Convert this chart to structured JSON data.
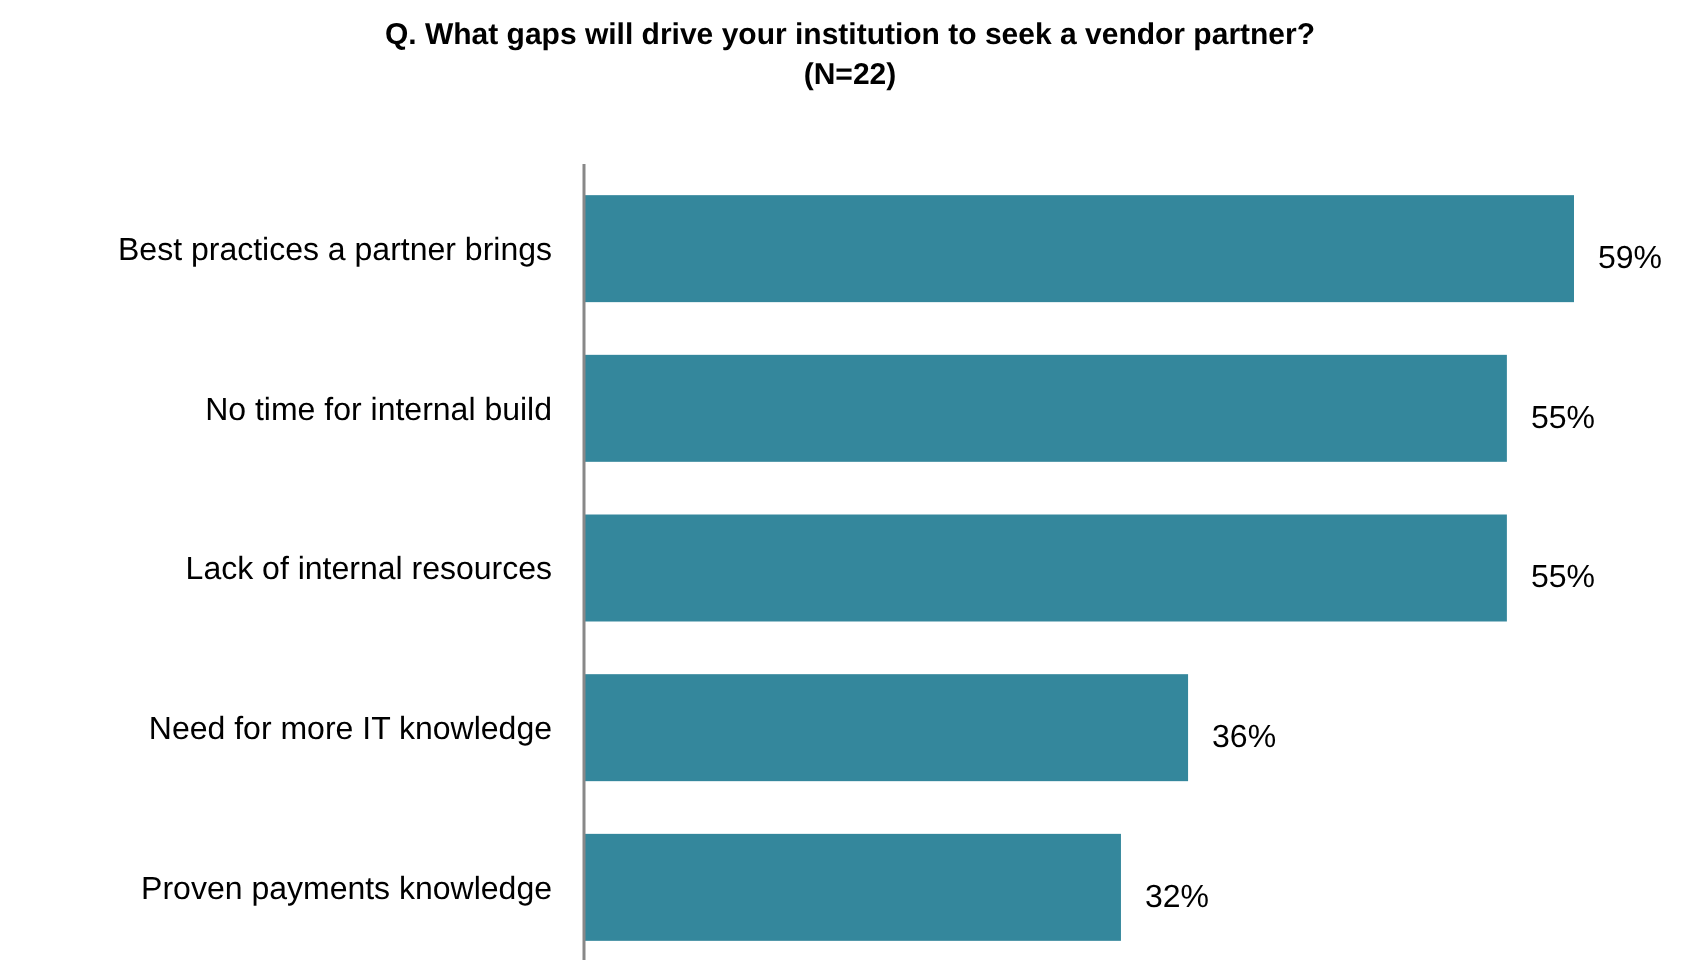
{
  "chart_data": {
    "type": "bar",
    "orientation": "horizontal",
    "title": "Q. What gaps will drive your institution to seek a vendor partner?",
    "subtitle": "(N=22)",
    "categories": [
      "Best practices a partner brings",
      "No time for internal build",
      "Lack of internal resources",
      "Need for more IT knowledge",
      "Proven payments knowledge"
    ],
    "values": [
      59,
      55,
      55,
      36,
      32
    ],
    "value_labels": [
      "59%",
      "55%",
      "55%",
      "36%",
      "32%"
    ],
    "color": "#34879c"
  }
}
